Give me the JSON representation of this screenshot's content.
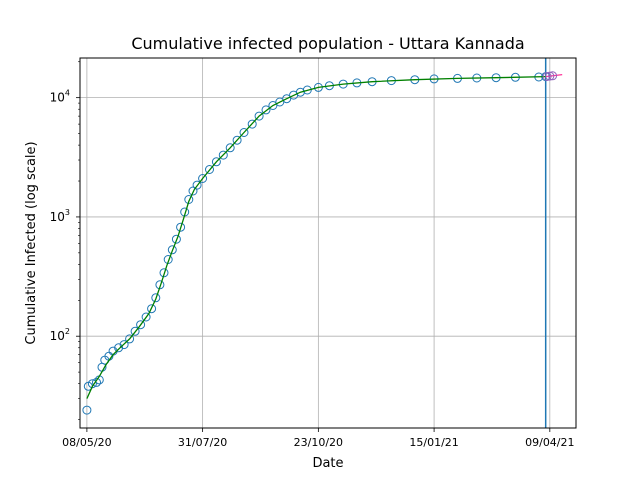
{
  "chart_data": {
    "type": "scatter",
    "title": "Cumulative infected population - Uttara Kannada",
    "xlabel": "Date",
    "ylabel": "Cumulative Infected (log scale)",
    "x_axis": {
      "type": "date",
      "range": [
        "2020-05-03",
        "2021-04-28"
      ],
      "ticks": [
        {
          "date": "2020-05-08",
          "label": "08/05/20"
        },
        {
          "date": "2020-07-31",
          "label": "31/07/20"
        },
        {
          "date": "2020-10-23",
          "label": "23/10/20"
        },
        {
          "date": "2021-01-15",
          "label": "15/01/21"
        },
        {
          "date": "2021-04-09",
          "label": "09/04/21"
        }
      ]
    },
    "y_axis": {
      "scale": "log",
      "range": [
        17,
        21500
      ],
      "ticks": [
        {
          "value": 100,
          "label": "10",
          "exp": "2"
        },
        {
          "value": 1000,
          "label": "10",
          "exp": "3"
        },
        {
          "value": 10000,
          "label": "10",
          "exp": "4"
        }
      ]
    },
    "grid": true,
    "vertical_marker": {
      "date": "2021-04-06",
      "color": "#1f77b4"
    },
    "colors": {
      "observed": "#1f77b4",
      "fit": "#008000",
      "forecast_line": "#ff3399",
      "forecast_marker": "#9467bd"
    },
    "series": [
      {
        "role": "observed",
        "marker": "hollow-circle",
        "points": [
          [
            "2020-05-08",
            24
          ],
          [
            "2020-05-09",
            38
          ],
          [
            "2020-05-12",
            40
          ],
          [
            "2020-05-15",
            41
          ],
          [
            "2020-05-17",
            43
          ],
          [
            "2020-05-19",
            55
          ],
          [
            "2020-05-21",
            63
          ],
          [
            "2020-05-24",
            68
          ],
          [
            "2020-05-27",
            75
          ],
          [
            "2020-05-31",
            80
          ],
          [
            "2020-06-04",
            85
          ],
          [
            "2020-06-08",
            95
          ],
          [
            "2020-06-12",
            110
          ],
          [
            "2020-06-16",
            125
          ],
          [
            "2020-06-20",
            145
          ],
          [
            "2020-06-24",
            170
          ],
          [
            "2020-06-27",
            210
          ],
          [
            "2020-06-30",
            270
          ],
          [
            "2020-07-03",
            340
          ],
          [
            "2020-07-06",
            440
          ],
          [
            "2020-07-09",
            530
          ],
          [
            "2020-07-12",
            650
          ],
          [
            "2020-07-15",
            820
          ],
          [
            "2020-07-18",
            1100
          ],
          [
            "2020-07-21",
            1400
          ],
          [
            "2020-07-24",
            1650
          ],
          [
            "2020-07-27",
            1850
          ],
          [
            "2020-07-31",
            2100
          ],
          [
            "2020-08-05",
            2500
          ],
          [
            "2020-08-10",
            2900
          ],
          [
            "2020-08-15",
            3300
          ],
          [
            "2020-08-20",
            3800
          ],
          [
            "2020-08-25",
            4400
          ],
          [
            "2020-08-30",
            5100
          ],
          [
            "2020-09-05",
            6000
          ],
          [
            "2020-09-10",
            7000
          ],
          [
            "2020-09-15",
            7900
          ],
          [
            "2020-09-20",
            8600
          ],
          [
            "2020-09-25",
            9200
          ],
          [
            "2020-09-30",
            9800
          ],
          [
            "2020-10-05",
            10500
          ],
          [
            "2020-10-10",
            11100
          ],
          [
            "2020-10-15",
            11600
          ],
          [
            "2020-10-23",
            12200
          ],
          [
            "2020-10-31",
            12600
          ],
          [
            "2020-11-10",
            13000
          ],
          [
            "2020-11-20",
            13300
          ],
          [
            "2020-12-01",
            13600
          ],
          [
            "2020-12-15",
            13900
          ],
          [
            "2021-01-01",
            14150
          ],
          [
            "2021-01-15",
            14350
          ],
          [
            "2021-02-01",
            14500
          ],
          [
            "2021-02-15",
            14600
          ],
          [
            "2021-03-01",
            14700
          ],
          [
            "2021-03-15",
            14800
          ],
          [
            "2021-04-01",
            14900
          ],
          [
            "2021-04-06",
            15000
          ]
        ]
      },
      {
        "role": "fit",
        "marker": "line",
        "points": [
          [
            "2020-05-08",
            30
          ],
          [
            "2020-05-12",
            38
          ],
          [
            "2020-05-17",
            46
          ],
          [
            "2020-05-22",
            58
          ],
          [
            "2020-05-27",
            70
          ],
          [
            "2020-06-01",
            80
          ],
          [
            "2020-06-08",
            95
          ],
          [
            "2020-06-15",
            120
          ],
          [
            "2020-06-22",
            155
          ],
          [
            "2020-06-27",
            205
          ],
          [
            "2020-07-01",
            280
          ],
          [
            "2020-07-05",
            390
          ],
          [
            "2020-07-09",
            520
          ],
          [
            "2020-07-13",
            680
          ],
          [
            "2020-07-17",
            950
          ],
          [
            "2020-07-21",
            1350
          ],
          [
            "2020-07-25",
            1700
          ],
          [
            "2020-07-31",
            2100
          ],
          [
            "2020-08-10",
            2900
          ],
          [
            "2020-08-20",
            3800
          ],
          [
            "2020-08-30",
            5100
          ],
          [
            "2020-09-10",
            7000
          ],
          [
            "2020-09-20",
            8600
          ],
          [
            "2020-09-30",
            9800
          ],
          [
            "2020-10-10",
            11100
          ],
          [
            "2020-10-23",
            12200
          ],
          [
            "2020-11-10",
            13000
          ],
          [
            "2020-12-01",
            13600
          ],
          [
            "2021-01-01",
            14150
          ],
          [
            "2021-02-01",
            14500
          ],
          [
            "2021-03-01",
            14700
          ],
          [
            "2021-04-06",
            15000
          ]
        ]
      },
      {
        "role": "forecast",
        "marker": "line",
        "points": [
          [
            "2021-04-06",
            15000
          ],
          [
            "2021-04-12",
            15300
          ],
          [
            "2021-04-18",
            15600
          ]
        ]
      },
      {
        "role": "forecast-points",
        "marker": "hollow-circle",
        "points": [
          [
            "2021-04-07",
            15050
          ],
          [
            "2021-04-09",
            15150
          ],
          [
            "2021-04-11",
            15250
          ]
        ]
      }
    ]
  }
}
